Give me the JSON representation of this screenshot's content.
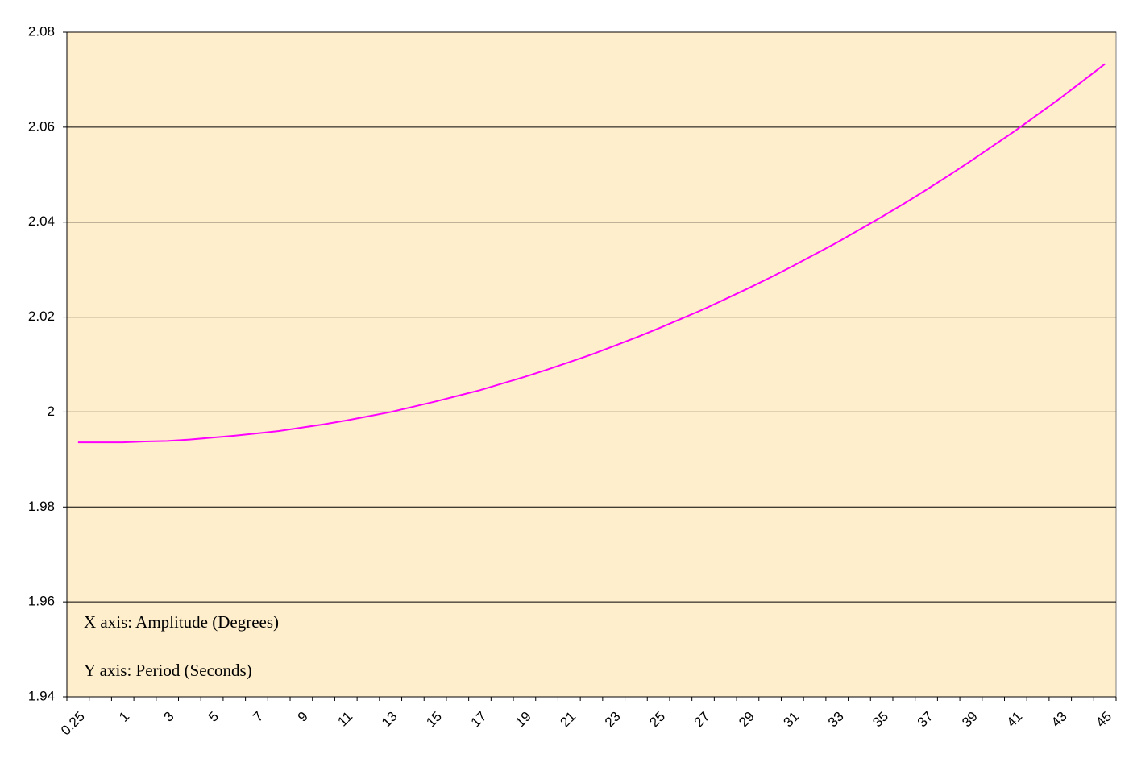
{
  "chart_data": {
    "type": "line",
    "categories": [
      "0.25",
      null,
      "1",
      null,
      "3",
      null,
      "5",
      null,
      "7",
      null,
      "9",
      null,
      "11",
      null,
      "13",
      null,
      "15",
      null,
      "17",
      null,
      "19",
      null,
      "21",
      null,
      "23",
      null,
      "25",
      null,
      "27",
      null,
      "29",
      null,
      "31",
      null,
      "33",
      null,
      "35",
      null,
      "37",
      null,
      "39",
      null,
      "41",
      null,
      "43",
      null,
      "45"
    ],
    "series": [
      {
        "name": "Period",
        "color": "#ff00ff",
        "values": [
          1.9936,
          1.9936,
          1.9936,
          1.9938,
          1.9939,
          1.9942,
          1.9946,
          1.995,
          1.9955,
          1.996,
          1.9967,
          1.9974,
          1.9982,
          1.9991,
          2.0,
          2.0011,
          2.0022,
          2.0034,
          2.0046,
          2.006,
          2.0074,
          2.0089,
          2.0105,
          2.0121,
          2.0139,
          2.0157,
          2.0176,
          2.0196,
          2.0216,
          2.0238,
          2.026,
          2.0283,
          2.0307,
          2.0332,
          2.0357,
          2.0384,
          2.0411,
          2.0439,
          2.0468,
          2.0498,
          2.0529,
          2.0561,
          2.0593,
          2.0627,
          2.0661,
          2.0697,
          2.0733
        ]
      }
    ],
    "ylim": [
      1.94,
      2.08
    ],
    "yticks": [
      1.94,
      1.96,
      1.98,
      2,
      2.02,
      2.04,
      2.06,
      2.08
    ],
    "grid": true,
    "plot_background": "#ffeecc",
    "annotations": [
      "X axis: Amplitude (Degrees)",
      "Y axis: Period (Seconds)"
    ]
  }
}
